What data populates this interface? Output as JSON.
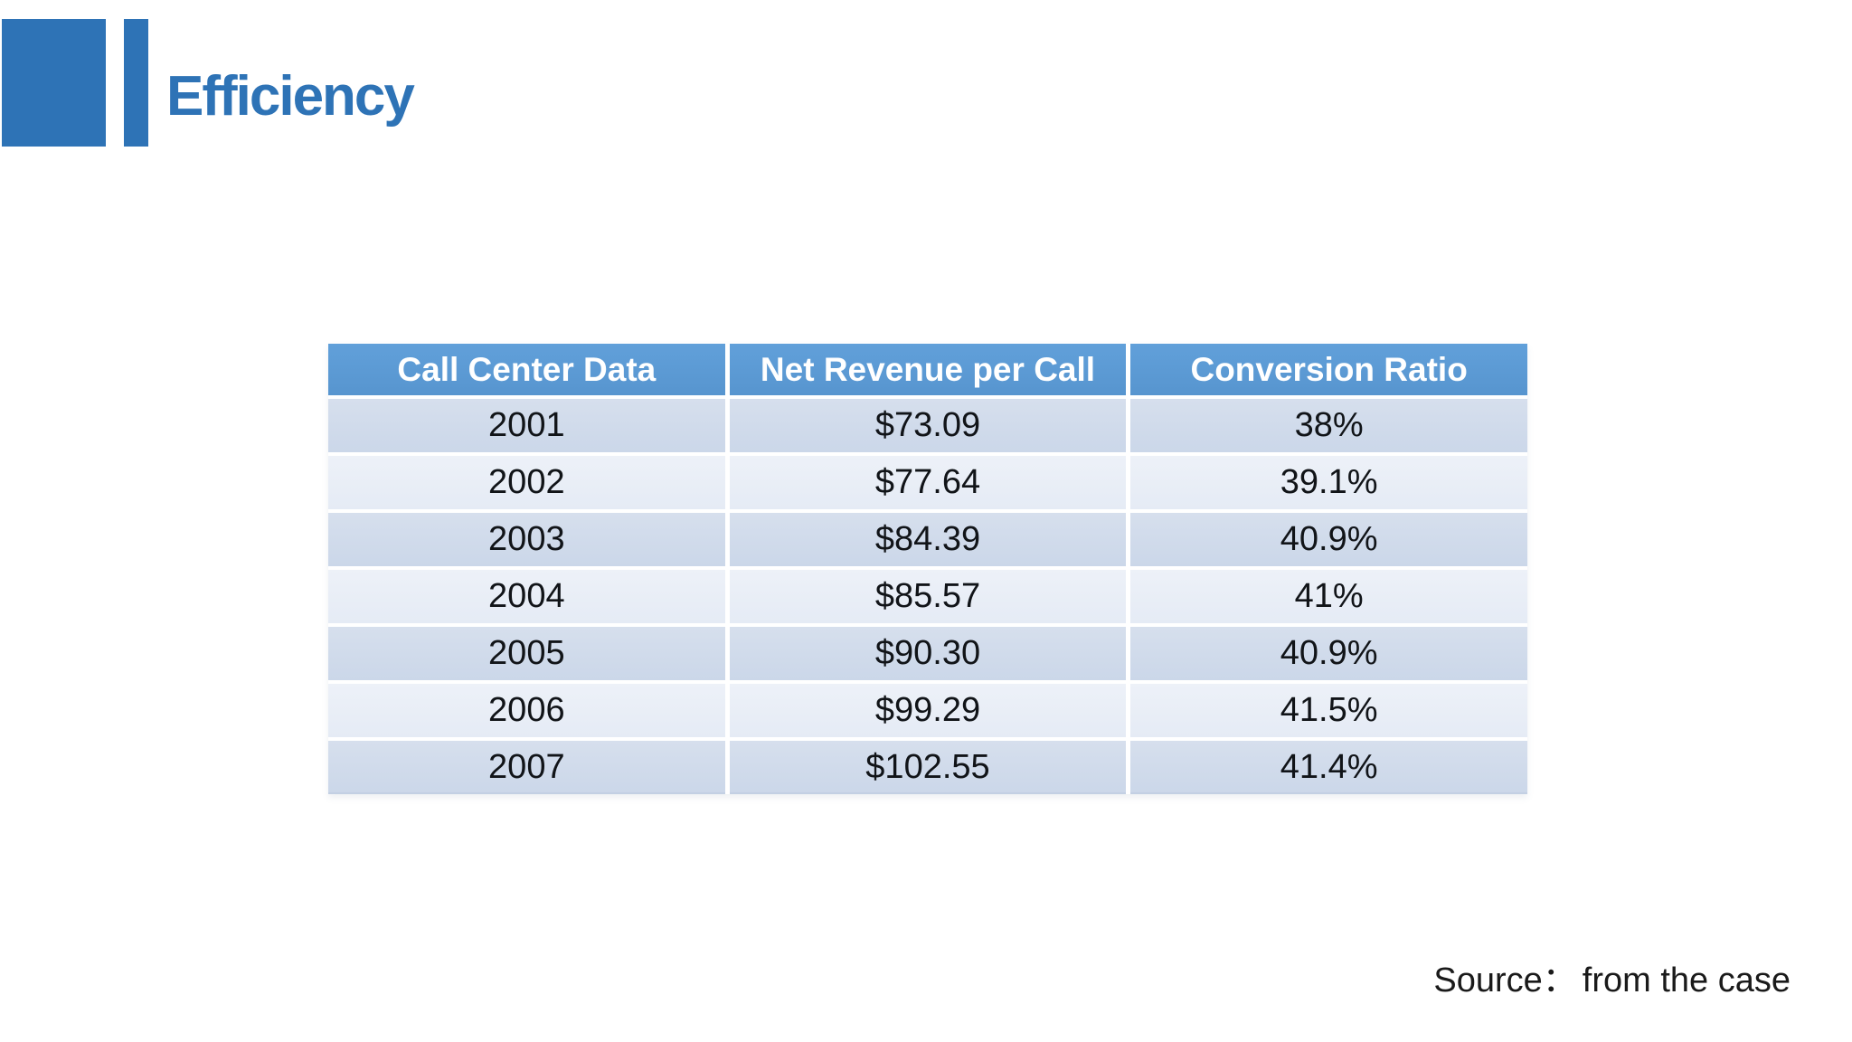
{
  "slide": {
    "title": "Efficiency",
    "source_label": "Source：",
    "source_text": "from the case"
  },
  "table": {
    "columns": [
      "Call Center Data",
      "Net Revenue per Call",
      "Conversion Ratio"
    ],
    "rows": [
      [
        "2001",
        "$73.09",
        "38%"
      ],
      [
        "2002",
        "$77.64",
        "39.1%"
      ],
      [
        "2003",
        "$84.39",
        "40.9%"
      ],
      [
        "2004",
        "$85.57",
        "41%"
      ],
      [
        "2005",
        "$90.30",
        "40.9%"
      ],
      [
        "2006",
        "$99.29",
        "41.5%"
      ],
      [
        "2007",
        "$102.55",
        "41.4%"
      ]
    ]
  },
  "chart_data": {
    "type": "table",
    "title": "Efficiency",
    "categories": [
      "2001",
      "2002",
      "2003",
      "2004",
      "2005",
      "2006",
      "2007"
    ],
    "series": [
      {
        "name": "Net Revenue per Call",
        "values": [
          73.09,
          77.64,
          84.39,
          85.57,
          90.3,
          99.29,
          102.55
        ]
      },
      {
        "name": "Conversion Ratio (%)",
        "values": [
          38,
          39.1,
          40.9,
          41,
          40.9,
          41.5,
          41.4
        ]
      }
    ]
  },
  "colors": {
    "accent_blue": "#2E73B6",
    "header_blue": "#5B9BD5",
    "row_dark": "#CFDAEA",
    "row_light": "#E9EEF6"
  }
}
